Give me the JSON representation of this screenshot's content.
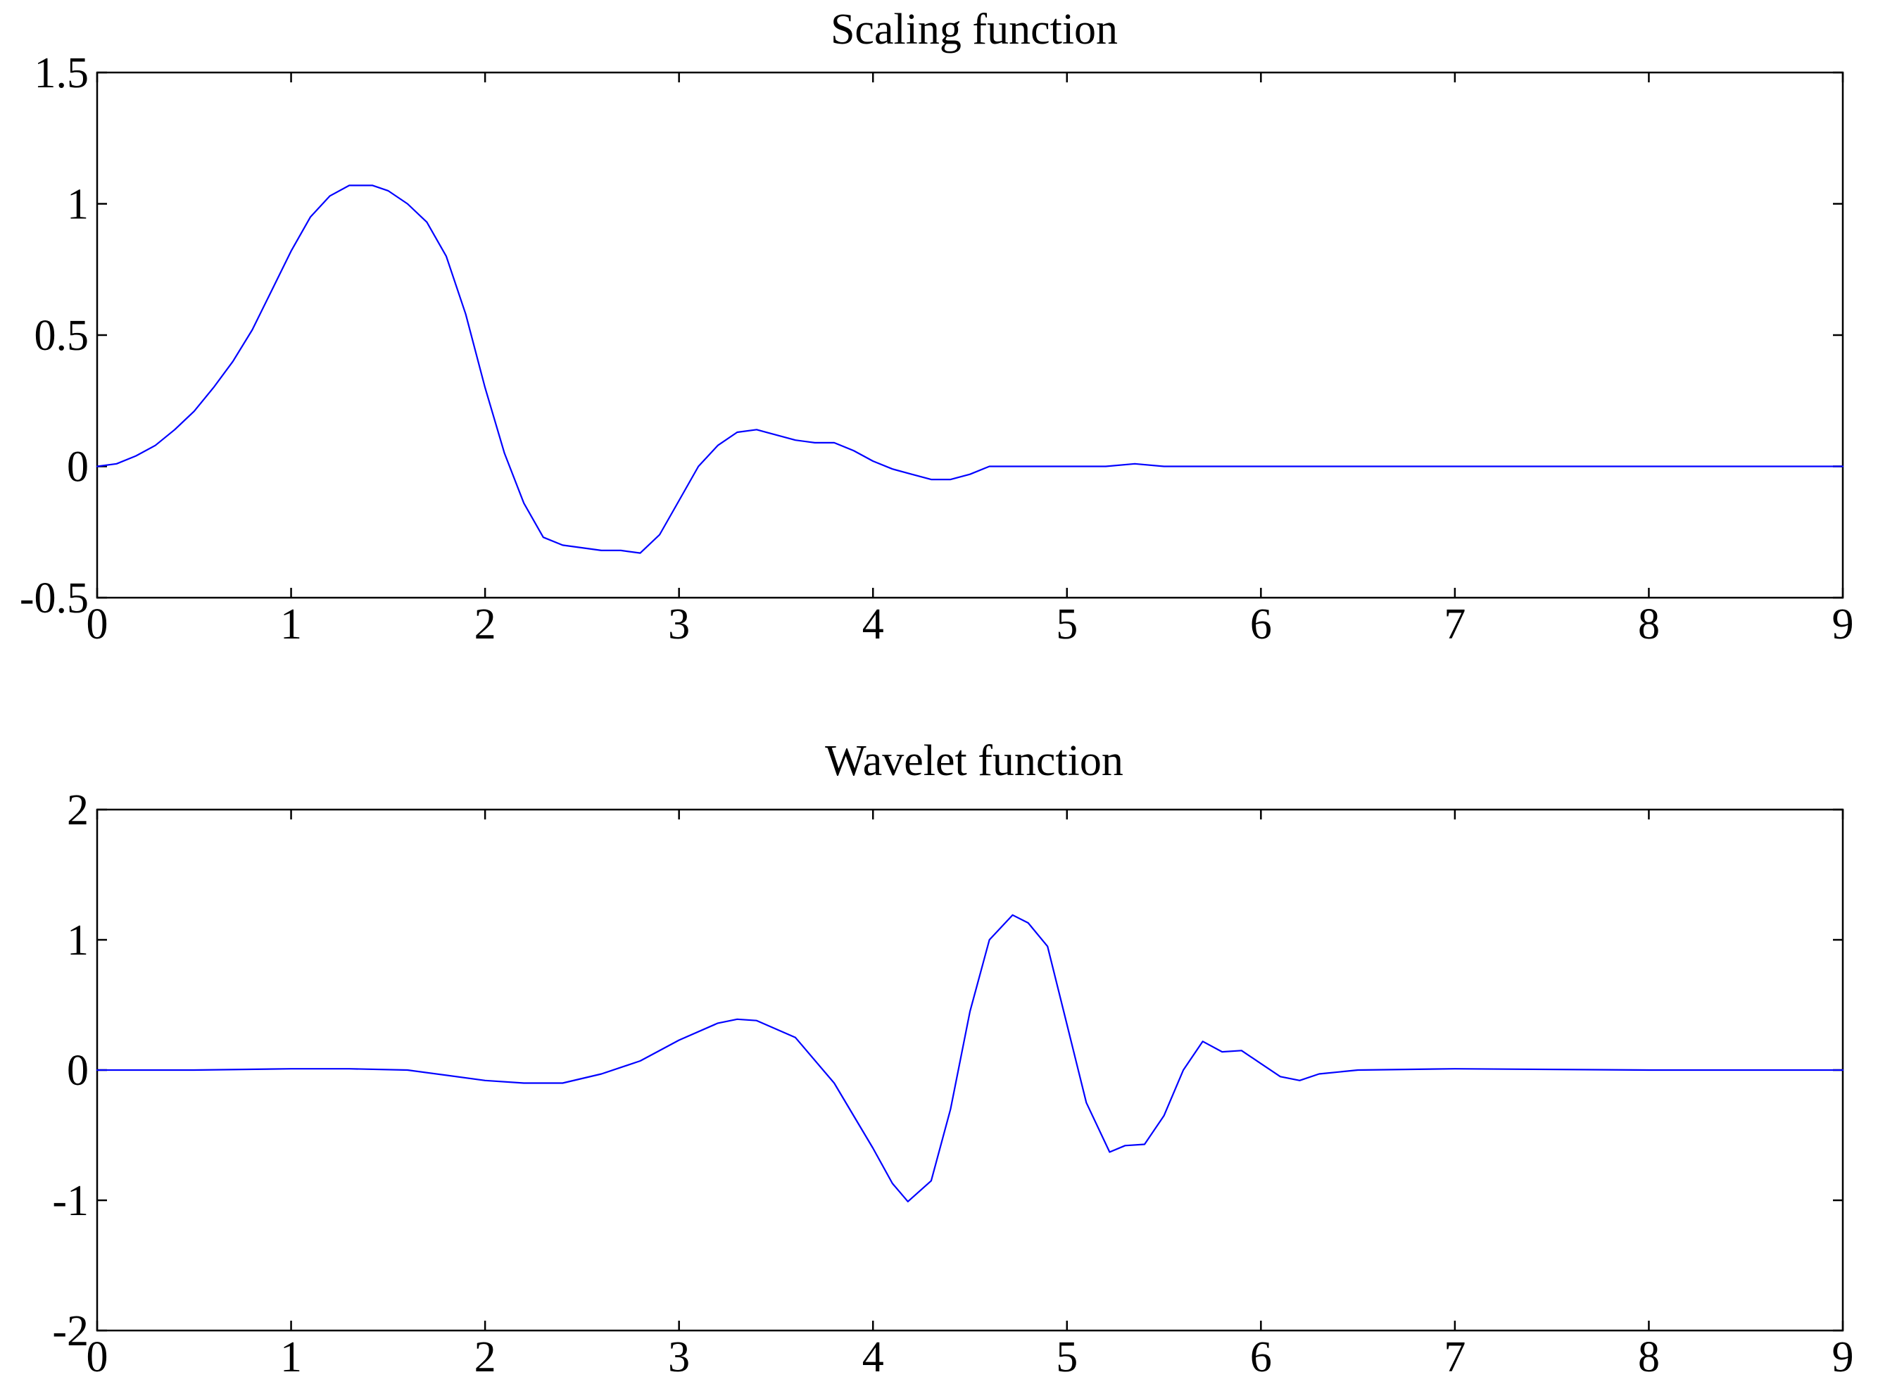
{
  "chart_data": [
    {
      "type": "line",
      "title": "Scaling function",
      "xlabel": "",
      "ylabel": "",
      "xlim": [
        0,
        9
      ],
      "ylim": [
        -0.5,
        1.5
      ],
      "xticks": [
        0,
        1,
        2,
        3,
        4,
        5,
        6,
        7,
        8,
        9
      ],
      "xtick_labels": [
        "0",
        "1",
        "2",
        "3",
        "4",
        "5",
        "6",
        "7",
        "8",
        "9"
      ],
      "yticks": [
        -0.5,
        0,
        0.5,
        1,
        1.5
      ],
      "ytick_labels": [
        "-0.5",
        "0",
        "0.5",
        "1",
        "1.5"
      ],
      "grid": false,
      "color": "#0000ff",
      "series": [
        {
          "x": [
            0,
            0.1,
            0.2,
            0.3,
            0.4,
            0.5,
            0.6,
            0.7,
            0.8,
            0.9,
            1.0,
            1.1,
            1.2,
            1.3,
            1.42,
            1.5,
            1.6,
            1.7,
            1.8,
            1.9,
            2.0,
            2.1,
            2.2,
            2.3,
            2.4,
            2.5,
            2.6,
            2.7,
            2.8,
            2.9,
            3.0,
            3.1,
            3.2,
            3.3,
            3.4,
            3.45,
            3.6,
            3.7,
            3.8,
            3.9,
            4.0,
            4.1,
            4.2,
            4.3,
            4.4,
            4.5,
            4.6,
            4.8,
            5.0,
            5.2,
            5.35,
            5.5,
            5.6,
            6.0,
            7.0,
            8.0,
            9.0
          ],
          "y": [
            0.0,
            0.01,
            0.04,
            0.08,
            0.14,
            0.21,
            0.3,
            0.4,
            0.52,
            0.67,
            0.82,
            0.95,
            1.03,
            1.07,
            1.07,
            1.05,
            1.0,
            0.93,
            0.8,
            0.58,
            0.3,
            0.05,
            -0.14,
            -0.27,
            -0.3,
            -0.31,
            -0.32,
            -0.32,
            -0.33,
            -0.26,
            -0.13,
            0.0,
            0.08,
            0.13,
            0.14,
            0.13,
            0.1,
            0.09,
            0.09,
            0.06,
            0.02,
            -0.01,
            -0.03,
            -0.05,
            -0.05,
            -0.03,
            0.0,
            0.0,
            0.0,
            0.0,
            0.01,
            0.0,
            0.0,
            0.0,
            0.0,
            0.0,
            0.0
          ]
        }
      ]
    },
    {
      "type": "line",
      "title": "Wavelet function",
      "xlabel": "",
      "ylabel": "",
      "xlim": [
        0,
        9
      ],
      "ylim": [
        -2,
        2
      ],
      "xticks": [
        0,
        1,
        2,
        3,
        4,
        5,
        6,
        7,
        8,
        9
      ],
      "xtick_labels": [
        "0",
        "1",
        "2",
        "3",
        "4",
        "5",
        "6",
        "7",
        "8",
        "9"
      ],
      "yticks": [
        -2,
        -1,
        0,
        1,
        2
      ],
      "ytick_labels": [
        "-2",
        "-1",
        "0",
        "1",
        "2"
      ],
      "grid": false,
      "color": "#0000ff",
      "series": [
        {
          "x": [
            0,
            0.5,
            1.0,
            1.3,
            1.6,
            2.0,
            2.2,
            2.4,
            2.6,
            2.8,
            3.0,
            3.2,
            3.3,
            3.4,
            3.6,
            3.8,
            4.0,
            4.1,
            4.18,
            4.3,
            4.4,
            4.5,
            4.6,
            4.72,
            4.8,
            4.9,
            5.0,
            5.1,
            5.22,
            5.3,
            5.4,
            5.5,
            5.6,
            5.7,
            5.8,
            5.9,
            6.0,
            6.1,
            6.2,
            6.3,
            6.5,
            7.0,
            8.0,
            9.0
          ],
          "y": [
            0.0,
            0.0,
            0.01,
            0.01,
            0.0,
            -0.08,
            -0.1,
            -0.1,
            -0.03,
            0.07,
            0.23,
            0.36,
            0.39,
            0.38,
            0.25,
            -0.1,
            -0.6,
            -0.87,
            -1.01,
            -0.85,
            -0.3,
            0.45,
            1.0,
            1.19,
            1.13,
            0.95,
            0.35,
            -0.25,
            -0.63,
            -0.58,
            -0.57,
            -0.35,
            0.0,
            0.22,
            0.14,
            0.15,
            0.05,
            -0.05,
            -0.08,
            -0.03,
            0.0,
            0.01,
            0.0,
            0.0
          ]
        }
      ]
    }
  ]
}
